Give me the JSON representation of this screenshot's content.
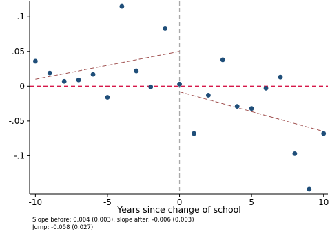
{
  "chart_data": {
    "type": "scatter",
    "title": "",
    "xlabel": "Years since change of school",
    "ylabel": "",
    "xlim": [
      -10.4,
      10.3
    ],
    "ylim": [
      -0.155,
      0.122
    ],
    "x_ticks": [
      -10,
      -5,
      0,
      5,
      10
    ],
    "x_tick_labels": [
      "-10",
      "-5",
      "0",
      "5",
      "10"
    ],
    "y_ticks": [
      0.1,
      0.05,
      0,
      -0.05,
      -0.1
    ],
    "y_tick_labels": [
      ".1",
      ".05",
      "0",
      "-.05",
      "-.1"
    ],
    "grid": false,
    "legend": "none",
    "series": [
      {
        "points": [
          [
            -10,
            0.036
          ],
          [
            -9,
            0.019
          ],
          [
            -8,
            0.007
          ],
          [
            -7,
            0.009
          ],
          [
            -6,
            0.017
          ],
          [
            -5,
            -0.016
          ],
          [
            -4,
            0.115
          ],
          [
            -3,
            0.022
          ],
          [
            -2,
            -0.001
          ],
          [
            -1,
            0.083
          ],
          [
            0,
            0.003
          ],
          [
            1,
            -0.068
          ],
          [
            2,
            -0.013
          ],
          [
            3,
            0.038
          ],
          [
            4,
            -0.029
          ],
          [
            5,
            -0.032
          ],
          [
            6,
            -0.003
          ],
          [
            7,
            0.013
          ],
          [
            8,
            -0.097
          ],
          [
            9,
            -0.148
          ],
          [
            10,
            -0.068
          ]
        ],
        "color": "#1f4e79"
      }
    ],
    "fit_lines": [
      {
        "x": [
          -10,
          0
        ],
        "y": [
          0.01,
          0.05
        ],
        "color": "#a0504f",
        "style": "dashed"
      },
      {
        "x": [
          0,
          10
        ],
        "y": [
          -0.008,
          -0.065
        ],
        "color": "#a0504f",
        "style": "dashed"
      }
    ],
    "reference_lines": [
      {
        "axis": "y",
        "value": 0,
        "color": "#d6184a",
        "style": "dashed"
      },
      {
        "axis": "x",
        "value": 0,
        "color": "#a9a9a9",
        "style": "dashed"
      }
    ]
  },
  "notes": {
    "slopes": "Slope before: 0.004 (0.003), slope after: -0.006 (0.003)",
    "jump": "Jump: -0.058 (0.027)"
  }
}
